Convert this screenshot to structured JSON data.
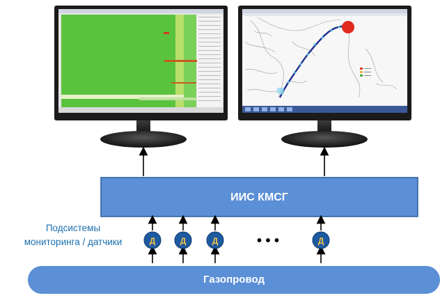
{
  "diagram": {
    "main_system_label": "ИИС КМСГ",
    "pipeline_label": "Газопровод",
    "subsystems_label_line1": "Подсистемы",
    "subsystems_label_line2": "мониторинга / датчики",
    "sensor_letter": "Д",
    "ellipsis": "• • •",
    "colors": {
      "box_fill": "#5b8fd6",
      "box_stroke": "#2a5d9c",
      "sensor_fill": "#1e5aa0",
      "sensor_letter": "#f2c343",
      "label_blue": "#1a6fae",
      "arrow": "#000000"
    }
  }
}
